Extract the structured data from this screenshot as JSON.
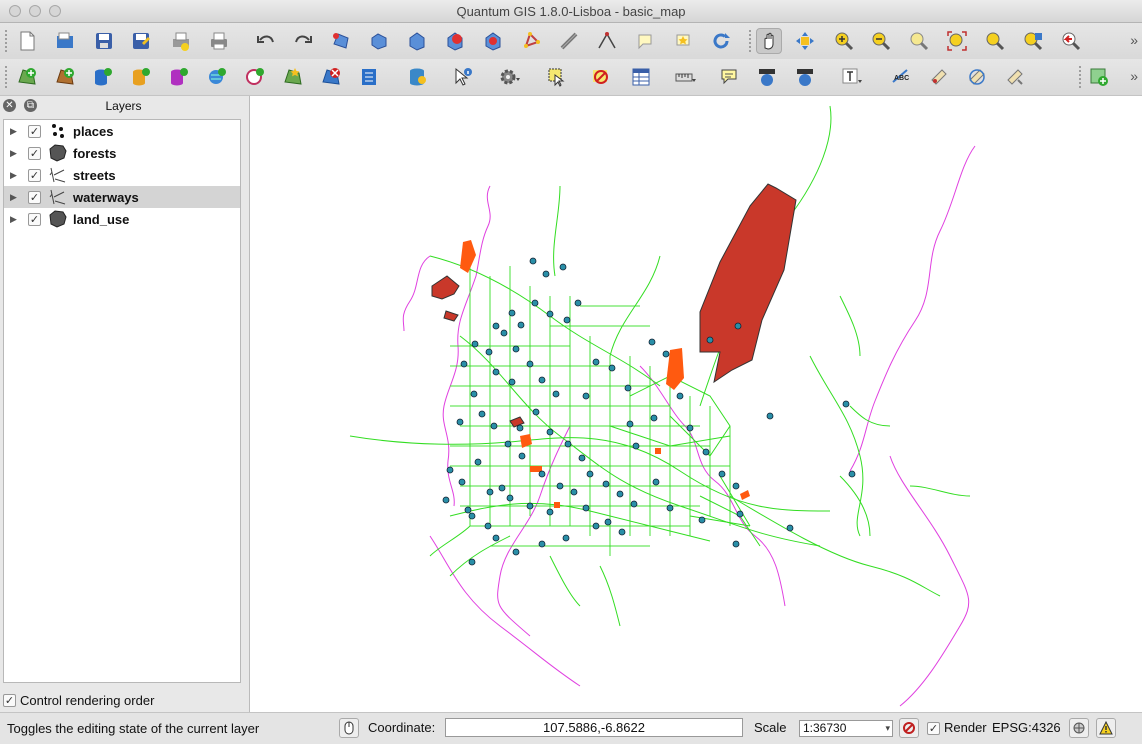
{
  "window": {
    "title": "Quantum GIS 1.8.0-Lisboa - basic_map"
  },
  "layers_panel": {
    "title": "Layers",
    "layers": [
      {
        "name": "places",
        "icon": "point-layer-icon",
        "checked": true,
        "selected": false
      },
      {
        "name": "forests",
        "icon": "polygon-layer-icon",
        "checked": true,
        "selected": false
      },
      {
        "name": "streets",
        "icon": "line-layer-icon",
        "checked": true,
        "selected": false
      },
      {
        "name": "waterways",
        "icon": "line-layer-icon",
        "checked": true,
        "selected": true
      },
      {
        "name": "land_use",
        "icon": "polygon-layer-icon",
        "checked": true,
        "selected": false
      }
    ],
    "control_rendering_order": "Control rendering order"
  },
  "status": {
    "message": "Toggles the editing state of the current layer",
    "coordinate_label": "Coordinate:",
    "coordinate_value": "107.5886,-6.8622",
    "scale_label": "Scale",
    "scale_value": "1:36730",
    "render_label": "Render",
    "crs": "EPSG:4326"
  },
  "colors": {
    "streets": "#33dd22",
    "waterways": "#e040e0",
    "places_fill": "#2a8fa8",
    "forest_fill": "#c9382a",
    "landuse_fill": "#ff5a10"
  }
}
